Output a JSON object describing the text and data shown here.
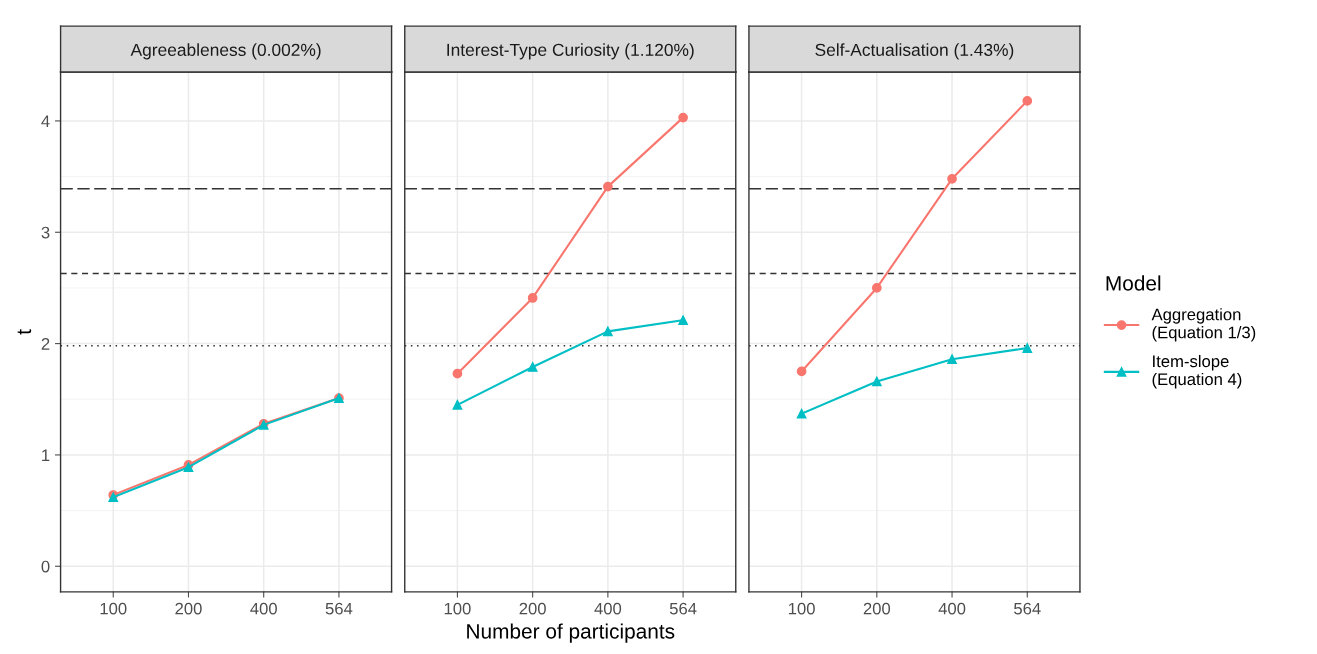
{
  "chart_data": [
    {
      "type": "line",
      "title": "Agreeableness (0.002%)",
      "ylabel": "t",
      "categories": [
        "100",
        "200",
        "400",
        "564"
      ],
      "ylim": [
        -0.23,
        4.44
      ],
      "yticks": [
        0,
        1,
        2,
        3,
        4
      ],
      "grid": true,
      "series": [
        {
          "color": "#f8766d",
          "marker": "circle",
          "values": [
            0.64,
            0.91,
            1.28,
            1.51
          ]
        },
        {
          "color": "#00bfc4",
          "marker": "triangle",
          "values": [
            0.62,
            0.89,
            1.27,
            1.51
          ]
        }
      ],
      "ref_lines": [
        {
          "axis": "y",
          "value": 1.98,
          "line_style": "dotted",
          "color": "#333333"
        },
        {
          "axis": "y",
          "value": 2.63,
          "line_style": "dashed",
          "color": "#333333"
        },
        {
          "axis": "y",
          "value": 3.39,
          "line_style": "longdash",
          "color": "#333333"
        }
      ]
    },
    {
      "type": "line",
      "title": "Interest-Type Curiosity (1.120%)",
      "xlabel": "Number of participants",
      "categories": [
        "100",
        "200",
        "400",
        "564"
      ],
      "ylim": [
        -0.23,
        4.44
      ],
      "yticks": [
        0,
        1,
        2,
        3,
        4
      ],
      "grid": true,
      "tick_labels": "x",
      "series": [
        {
          "color": "#f8766d",
          "marker": "circle",
          "values": [
            1.73,
            2.41,
            3.41,
            4.03
          ]
        },
        {
          "color": "#00bfc4",
          "marker": "triangle",
          "values": [
            1.45,
            1.79,
            2.11,
            2.21
          ]
        }
      ],
      "ref_lines": [
        {
          "axis": "y",
          "value": 1.98,
          "line_style": "dotted",
          "color": "#333333"
        },
        {
          "axis": "y",
          "value": 2.63,
          "line_style": "dashed",
          "color": "#333333"
        },
        {
          "axis": "y",
          "value": 3.39,
          "line_style": "longdash",
          "color": "#333333"
        }
      ]
    },
    {
      "type": "line",
      "title": "Self-Actualisation (1.43%)",
      "categories": [
        "100",
        "200",
        "400",
        "564"
      ],
      "ylim": [
        -0.23,
        4.44
      ],
      "yticks": [
        0,
        1,
        2,
        3,
        4
      ],
      "grid": true,
      "tick_labels": "x",
      "legend": "right",
      "legend_title": "Model",
      "series": [
        {
          "name": "Aggregation\n(Equation 1/3)",
          "color": "#f8766d",
          "marker": "circle",
          "values": [
            1.75,
            2.5,
            3.48,
            4.18
          ]
        },
        {
          "name": "Item-slope\n(Equation 4)",
          "color": "#00bfc4",
          "marker": "triangle",
          "values": [
            1.37,
            1.66,
            1.86,
            1.96
          ]
        }
      ],
      "ref_lines": [
        {
          "axis": "y",
          "value": 1.98,
          "line_style": "dotted",
          "color": "#333333"
        },
        {
          "axis": "y",
          "value": 2.63,
          "line_style": "dashed",
          "color": "#333333"
        },
        {
          "axis": "y",
          "value": 3.39,
          "line_style": "longdash",
          "color": "#333333"
        }
      ]
    }
  ]
}
